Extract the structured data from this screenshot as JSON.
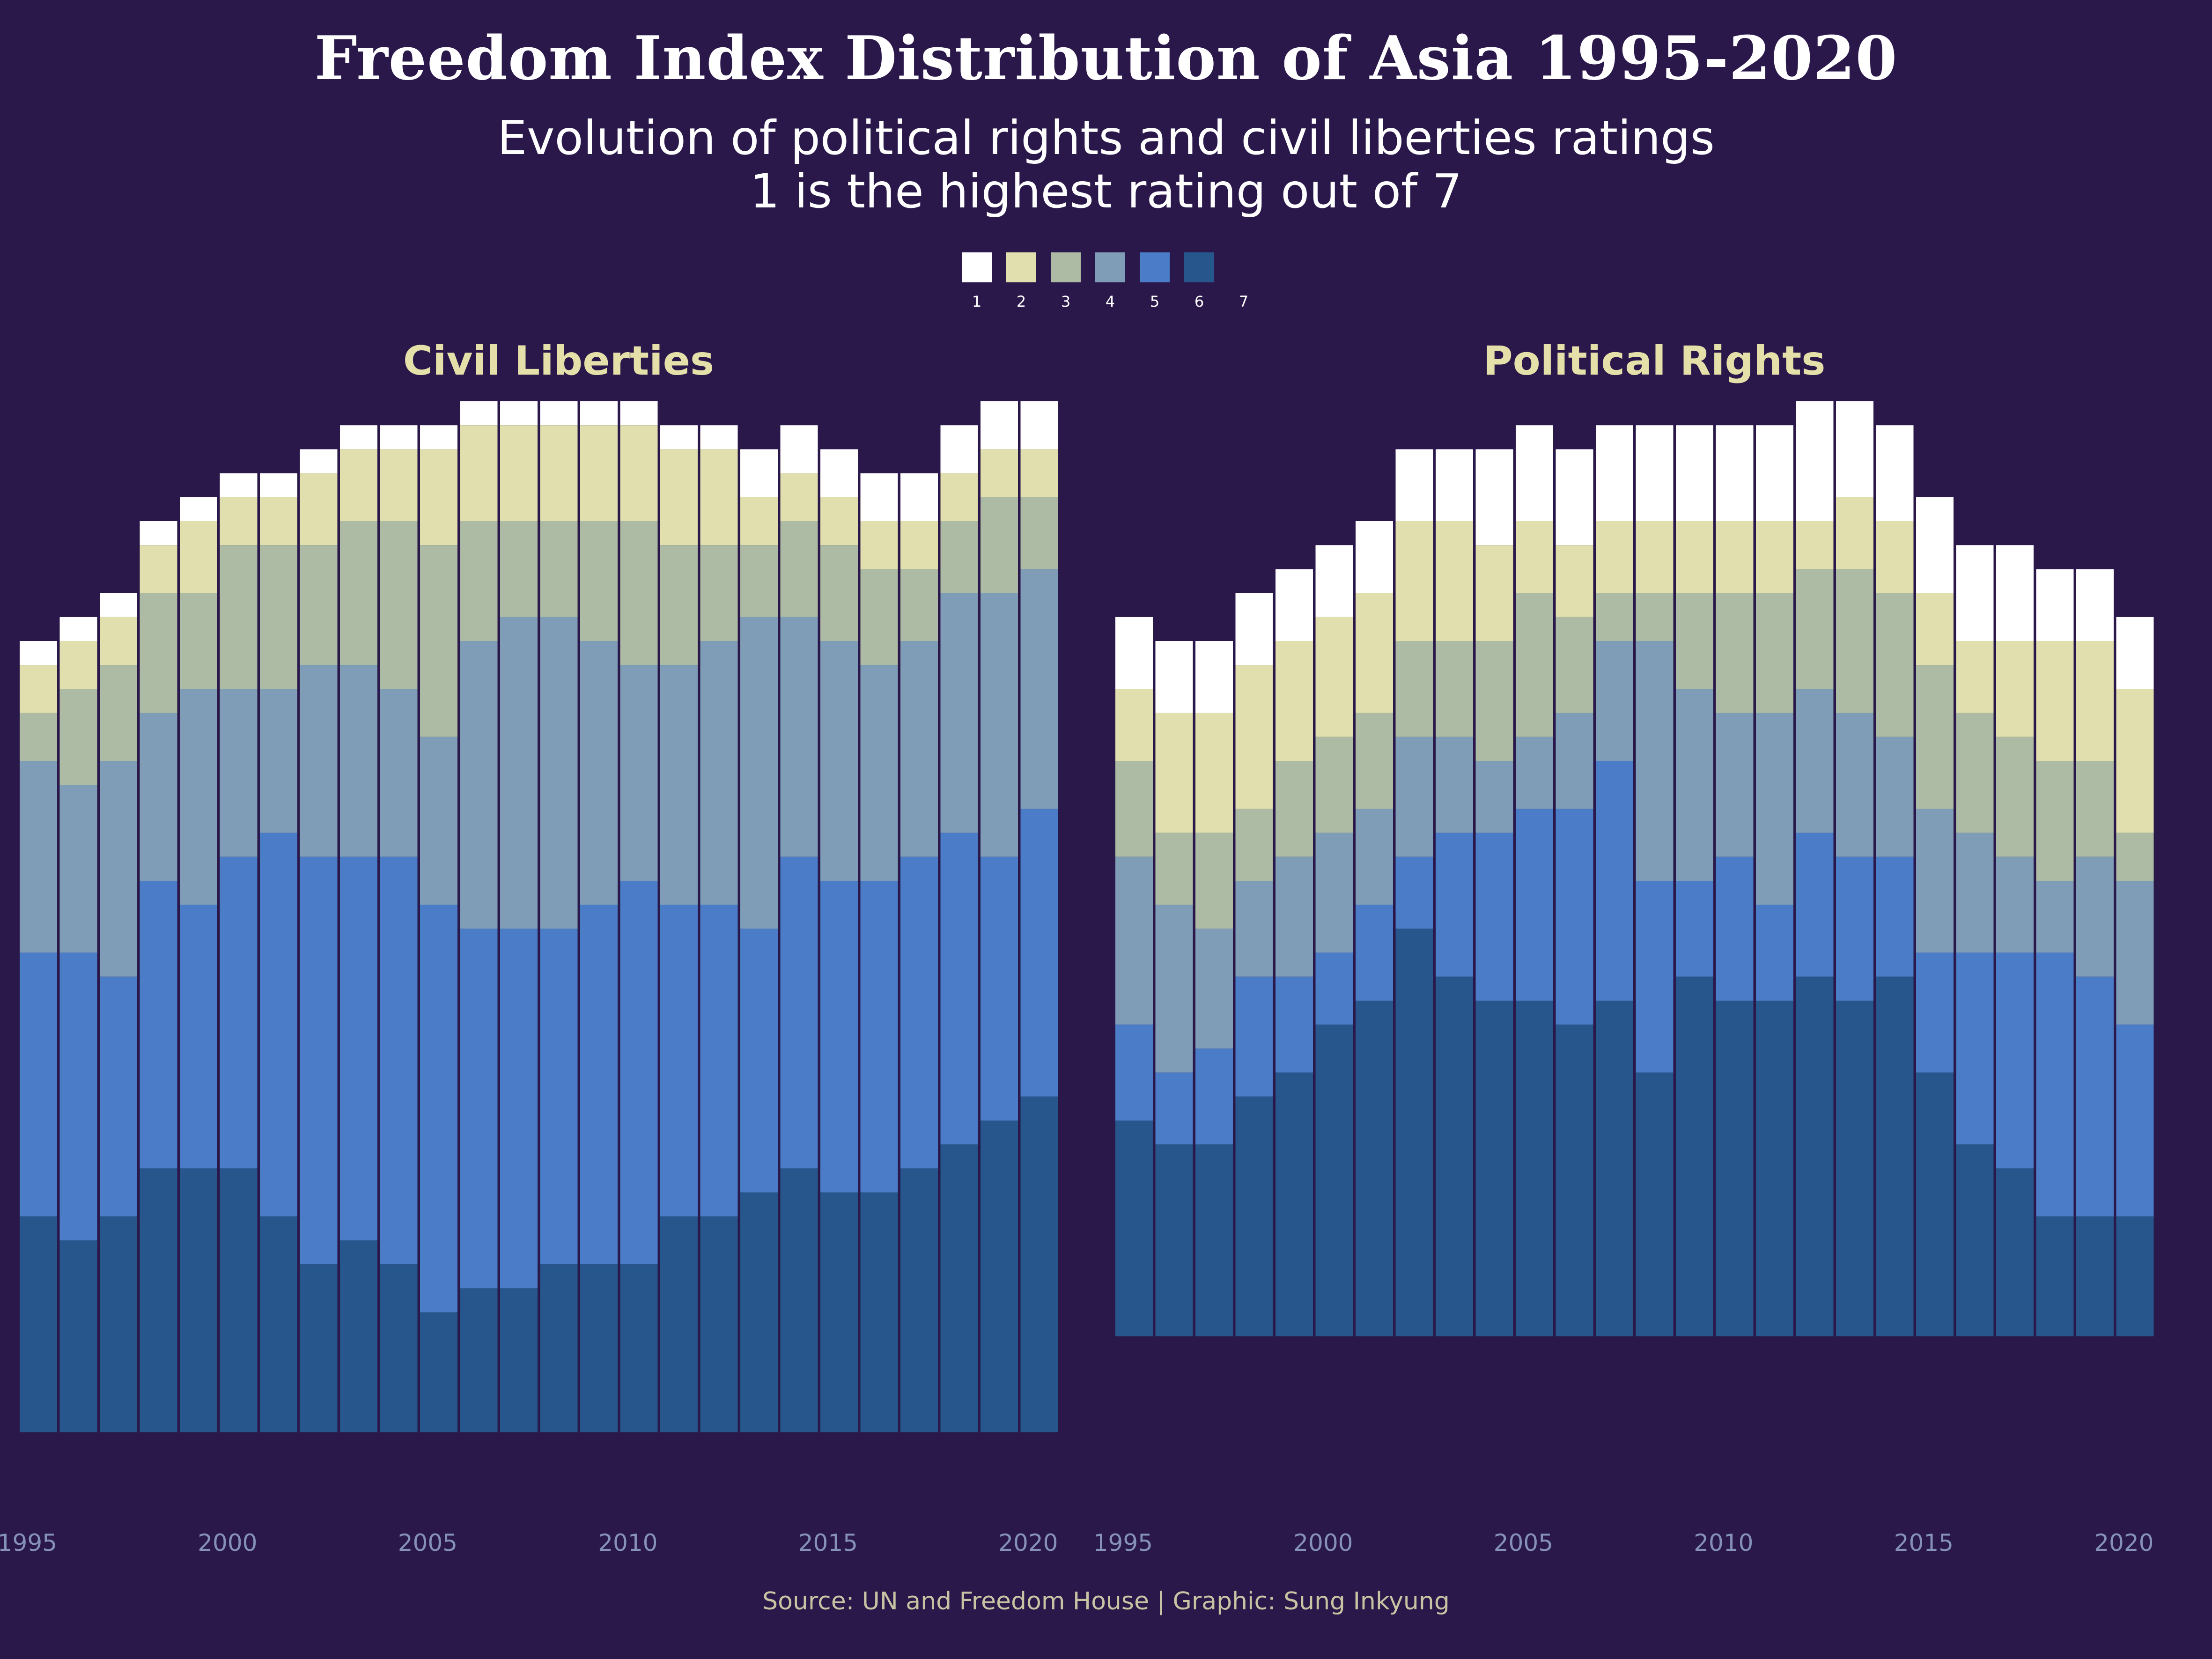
{
  "title": "Freedom Index Distribution of Asia 1995-2020",
  "subtitle_line1": "Evolution of political rights and civil liberties ratings",
  "subtitle_line2": "1 is the highest rating out of 7",
  "source": "Source: UN and Freedom House | Graphic: Sung Inkyung",
  "colors": {
    "background": "#2a184a",
    "rating_1": "#ffffff",
    "rating_2": "#e0dfad",
    "rating_3": "#aebba4",
    "rating_4": "#7f9db6",
    "rating_5": "#4b7cc7",
    "rating_6": "#26568b",
    "panel_title": "#e5e0aa",
    "axis_text": "#8591b8"
  },
  "chart_data": {
    "type": "bar",
    "stacked": true,
    "unit": "number of countries",
    "legend": {
      "position": "top-center",
      "labels": [
        "1",
        "2",
        "3",
        "4",
        "5",
        "6",
        "7"
      ]
    },
    "x_ticks": [
      "1995",
      "2000",
      "2005",
      "2010",
      "2015",
      "2020"
    ],
    "panels": [
      {
        "title": "Civil Liberties",
        "x": [
          1995,
          1996,
          1997,
          1998,
          1999,
          2000,
          2001,
          2002,
          2003,
          2004,
          2005,
          2006,
          2007,
          2008,
          2009,
          2010,
          2011,
          2012,
          2013,
          2014,
          2015,
          2016,
          2017,
          2018,
          2019,
          2020
        ],
        "series": [
          {
            "name": "1",
            "values": [
              1,
              1,
              1,
              1,
              1,
              1,
              1,
              1,
              1,
              1,
              1,
              1,
              1,
              1,
              1,
              1,
              1,
              1,
              2,
              2,
              2,
              2,
              2,
              2,
              2,
              2
            ]
          },
          {
            "name": "2",
            "values": [
              2,
              2,
              2,
              2,
              3,
              2,
              2,
              3,
              3,
              3,
              4,
              4,
              4,
              4,
              4,
              4,
              4,
              4,
              2,
              2,
              2,
              2,
              2,
              2,
              2,
              2
            ]
          },
          {
            "name": "3",
            "values": [
              2,
              4,
              4,
              5,
              4,
              6,
              6,
              5,
              6,
              7,
              8,
              5,
              4,
              4,
              5,
              6,
              5,
              4,
              3,
              4,
              4,
              4,
              3,
              3,
              4,
              3
            ]
          },
          {
            "name": "4",
            "values": [
              8,
              7,
              9,
              7,
              9,
              7,
              6,
              8,
              8,
              7,
              7,
              12,
              13,
              13,
              11,
              9,
              10,
              11,
              13,
              10,
              10,
              9,
              9,
              10,
              11,
              10
            ]
          },
          {
            "name": "5",
            "values": [
              11,
              12,
              10,
              12,
              11,
              13,
              16,
              17,
              16,
              17,
              17,
              15,
              15,
              14,
              15,
              16,
              13,
              13,
              11,
              13,
              13,
              13,
              13,
              13,
              11,
              12
            ]
          },
          {
            "name": "6",
            "values": [
              9,
              8,
              9,
              11,
              11,
              11,
              9,
              7,
              8,
              7,
              5,
              6,
              6,
              7,
              7,
              7,
              9,
              9,
              10,
              11,
              10,
              10,
              11,
              12,
              13,
              14
            ]
          },
          {
            "name": "7",
            "values": [
              0,
              0,
              0,
              0,
              0,
              0,
              0,
              0,
              0,
              0,
              0,
              0,
              0,
              0,
              0,
              0,
              0,
              0,
              0,
              0,
              0,
              0,
              0,
              0,
              0,
              0
            ]
          }
        ]
      },
      {
        "title": "Political Rights",
        "x": [
          1995,
          1996,
          1997,
          1998,
          1999,
          2000,
          2001,
          2002,
          2003,
          2004,
          2005,
          2006,
          2007,
          2008,
          2009,
          2010,
          2011,
          2012,
          2013,
          2014,
          2015,
          2016,
          2017,
          2018,
          2019,
          2020
        ],
        "series": [
          {
            "name": "1",
            "values": [
              3,
              3,
              3,
              3,
              3,
              3,
              3,
              3,
              3,
              4,
              4,
              4,
              4,
              4,
              4,
              4,
              4,
              5,
              4,
              4,
              4,
              4,
              4,
              3,
              3,
              3
            ]
          },
          {
            "name": "2",
            "values": [
              3,
              5,
              5,
              6,
              5,
              5,
              5,
              5,
              5,
              4,
              3,
              3,
              3,
              3,
              3,
              3,
              3,
              2,
              3,
              3,
              3,
              3,
              4,
              5,
              5,
              6
            ]
          },
          {
            "name": "3",
            "values": [
              4,
              3,
              4,
              3,
              4,
              4,
              4,
              4,
              4,
              5,
              6,
              4,
              2,
              2,
              4,
              5,
              5,
              5,
              6,
              6,
              6,
              5,
              5,
              5,
              4,
              2
            ]
          },
          {
            "name": "4",
            "values": [
              7,
              7,
              5,
              4,
              5,
              5,
              4,
              5,
              4,
              3,
              3,
              4,
              5,
              10,
              8,
              6,
              8,
              6,
              6,
              5,
              6,
              5,
              4,
              3,
              5,
              6
            ]
          },
          {
            "name": "5",
            "values": [
              4,
              3,
              4,
              5,
              4,
              3,
              4,
              3,
              6,
              7,
              8,
              9,
              10,
              8,
              4,
              6,
              4,
              6,
              6,
              5,
              5,
              8,
              9,
              11,
              10,
              8
            ]
          },
          {
            "name": "6",
            "values": [
              9,
              8,
              8,
              10,
              11,
              13,
              14,
              17,
              15,
              14,
              14,
              13,
              14,
              11,
              15,
              14,
              14,
              15,
              14,
              15,
              11,
              8,
              7,
              5,
              5,
              5
            ]
          },
          {
            "name": "7",
            "values": [
              0,
              0,
              0,
              0,
              0,
              0,
              0,
              0,
              0,
              0,
              0,
              0,
              0,
              0,
              0,
              0,
              0,
              0,
              0,
              0,
              0,
              0,
              0,
              0,
              0,
              0
            ]
          }
        ]
      }
    ]
  }
}
